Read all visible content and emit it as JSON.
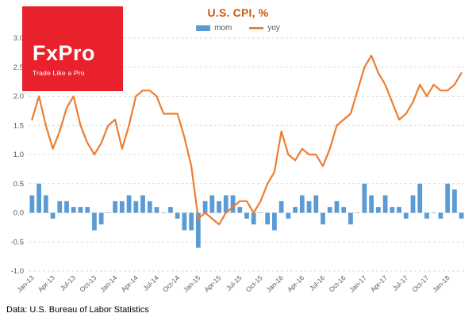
{
  "logo": {
    "brand": "FxPro",
    "tagline": "Trade Like a Pro",
    "bg_color": "#e8212d",
    "text_color": "#ffffff"
  },
  "footer": {
    "source": "Data: U.S. Bureau of Labor Statistics"
  },
  "chart_data": {
    "type": "combo",
    "title": "U.S. CPI, %",
    "title_color": "#c55a11",
    "xlabel": "",
    "ylabel": "",
    "ylim": [
      -1.0,
      3.0
    ],
    "ytick_step": 0.5,
    "grid": "horizontal-dashed",
    "grid_color": "#d9d9d9",
    "axis_label_color": "#595959",
    "legend_position": "top-center",
    "x_tick_every": 3,
    "categories": [
      "Jan-13",
      "Feb-13",
      "Mar-13",
      "Apr-13",
      "May-13",
      "Jun-13",
      "Jul-13",
      "Aug-13",
      "Sep-13",
      "Oct-13",
      "Nov-13",
      "Dec-13",
      "Jan-14",
      "Feb-14",
      "Mar-14",
      "Apr-14",
      "May-14",
      "Jun-14",
      "Jul-14",
      "Aug-14",
      "Sep-14",
      "Oct-14",
      "Nov-14",
      "Dec-14",
      "Jan-15",
      "Feb-15",
      "Mar-15",
      "Apr-15",
      "May-15",
      "Jun-15",
      "Jul-15",
      "Aug-15",
      "Sep-15",
      "Oct-15",
      "Nov-15",
      "Dec-15",
      "Jan-16",
      "Feb-16",
      "Mar-16",
      "Apr-16",
      "May-16",
      "Jun-16",
      "Jul-16",
      "Aug-16",
      "Sep-16",
      "Oct-16",
      "Nov-16",
      "Dec-16",
      "Jan-17",
      "Feb-17",
      "Mar-17",
      "Apr-17",
      "May-17",
      "Jun-17",
      "Jul-17",
      "Aug-17",
      "Sep-17",
      "Oct-17",
      "Nov-17",
      "Dec-17",
      "Jan-18",
      "Feb-18",
      "Mar-18"
    ],
    "series": [
      {
        "name": "mom",
        "type": "bar",
        "color": "#5b9bd5",
        "values": [
          0.3,
          0.5,
          0.3,
          -0.1,
          0.2,
          0.2,
          0.1,
          0.1,
          0.1,
          -0.3,
          -0.2,
          0.0,
          0.2,
          0.2,
          0.3,
          0.2,
          0.3,
          0.2,
          0.1,
          0.0,
          0.1,
          -0.1,
          -0.3,
          -0.3,
          -0.6,
          0.2,
          0.3,
          0.2,
          0.3,
          0.3,
          0.1,
          -0.1,
          -0.2,
          0.0,
          -0.2,
          -0.3,
          0.2,
          -0.1,
          0.1,
          0.3,
          0.2,
          0.3,
          -0.2,
          0.1,
          0.2,
          0.1,
          -0.2,
          0.0,
          0.5,
          0.3,
          0.1,
          0.3,
          0.1,
          0.1,
          -0.1,
          0.3,
          0.5,
          -0.1,
          0.0,
          -0.1,
          0.5,
          0.4,
          -0.1
        ]
      },
      {
        "name": "yoy",
        "type": "line",
        "color": "#ed7d31",
        "values": [
          1.6,
          2.0,
          1.5,
          1.1,
          1.4,
          1.8,
          2.0,
          1.5,
          1.2,
          1.0,
          1.2,
          1.5,
          1.6,
          1.1,
          1.5,
          2.0,
          2.1,
          2.1,
          2.0,
          1.7,
          1.7,
          1.7,
          1.3,
          0.8,
          -0.1,
          0.0,
          -0.1,
          -0.2,
          0.0,
          0.1,
          0.2,
          0.2,
          0.0,
          0.2,
          0.5,
          0.7,
          1.4,
          1.0,
          0.9,
          1.1,
          1.0,
          1.0,
          0.8,
          1.1,
          1.5,
          1.6,
          1.7,
          2.1,
          2.5,
          2.7,
          2.4,
          2.2,
          1.9,
          1.6,
          1.7,
          1.9,
          2.2,
          2.0,
          2.2,
          2.1,
          2.1,
          2.2,
          2.4
        ]
      }
    ]
  }
}
